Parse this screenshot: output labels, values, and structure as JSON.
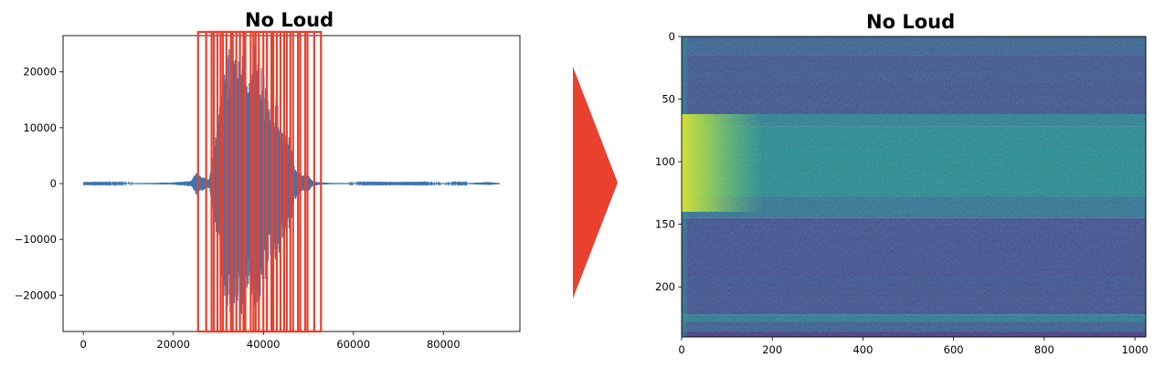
{
  "chart_data": [
    {
      "type": "line",
      "title": "No Loud",
      "xlabel": "",
      "ylabel": "",
      "xlim": [
        -4500,
        97000
      ],
      "ylim": [
        -26500,
        26500
      ],
      "x_ticks": [
        0,
        20000,
        40000,
        60000,
        80000
      ],
      "x_tick_labels": [
        "0",
        "20000",
        "40000",
        "60000",
        "80000"
      ],
      "y_ticks": [
        20000,
        10000,
        0,
        -10000,
        -20000
      ],
      "y_tick_labels": [
        "20000",
        "10000",
        "0",
        "−10000",
        "−20000"
      ],
      "line_color": "#3b75af",
      "grid": false,
      "series": [
        {
          "x": [
            0,
            5000,
            10000,
            15000,
            20000,
            24000,
            25000,
            26000,
            27000,
            28000,
            29000,
            30000,
            31000,
            32000,
            33000,
            34000,
            35000,
            36000,
            37000,
            38000,
            39000,
            40000,
            41000,
            42000,
            43000,
            44000,
            45000,
            46000,
            47000,
            48000,
            49000,
            50000,
            51000,
            52000,
            53000,
            55000,
            60000,
            65000,
            70000,
            75000,
            80000,
            85000,
            90000,
            92500
          ],
          "amplitude": [
            50,
            60,
            80,
            120,
            200,
            500,
            2000,
            1500,
            1000,
            800,
            6000,
            12000,
            18000,
            24000,
            26000,
            22000,
            25000,
            20000,
            18000,
            25000,
            22000,
            20000,
            15000,
            12000,
            16000,
            10000,
            9000,
            8000,
            3000,
            2000,
            1500,
            1500,
            400,
            300,
            200,
            120,
            80,
            60,
            50,
            60,
            80,
            60,
            300,
            80
          ]
        }
      ],
      "frame_boxes_x": [
        [
          25500,
          52800
        ],
        [
          27300,
          29000
        ],
        [
          28500,
          30500
        ],
        [
          29800,
          31800
        ],
        [
          31000,
          33200
        ],
        [
          32800,
          34800
        ],
        [
          34000,
          36000
        ],
        [
          35600,
          37800
        ],
        [
          37200,
          39000
        ],
        [
          38300,
          40800
        ],
        [
          40000,
          42200
        ],
        [
          41800,
          43800
        ],
        [
          43000,
          45200
        ],
        [
          44600,
          46600
        ],
        [
          46000,
          48200
        ],
        [
          47700,
          49800
        ],
        [
          49300,
          51300
        ]
      ],
      "frame_box_color": "#e8412f"
    },
    {
      "type": "heatmap",
      "title": "No Loud",
      "xlabel": "",
      "ylabel": "",
      "xlim": [
        0,
        1024
      ],
      "ylim": [
        240,
        0
      ],
      "x_ticks": [
        0,
        200,
        400,
        600,
        800,
        1000
      ],
      "x_tick_labels": [
        "0",
        "200",
        "400",
        "600",
        "800",
        "1000"
      ],
      "y_ticks": [
        0,
        50,
        100,
        150,
        200
      ],
      "y_tick_labels": [
        "0",
        "50",
        "100",
        "150",
        "200"
      ],
      "colormap": "viridis",
      "row_bands": [
        {
          "y": [
            0,
            15
          ],
          "level": 0.38
        },
        {
          "y": [
            15,
            62
          ],
          "level": 0.32
        },
        {
          "y": [
            62,
            72
          ],
          "level": 0.52
        },
        {
          "y": [
            72,
            128
          ],
          "level": 0.58
        },
        {
          "y": [
            128,
            145
          ],
          "level": 0.46
        },
        {
          "y": [
            145,
            222
          ],
          "level": 0.3
        },
        {
          "y": [
            222,
            228
          ],
          "level": 0.5
        },
        {
          "y": [
            228,
            236
          ],
          "level": 0.36
        },
        {
          "y": [
            236,
            240
          ],
          "level": 0.2
        }
      ],
      "hotspot": {
        "x": [
          0,
          180
        ],
        "y": [
          62,
          140
        ],
        "level": 0.88
      }
    }
  ],
  "arrow": {
    "color": "#e8412f",
    "direction": "right"
  }
}
